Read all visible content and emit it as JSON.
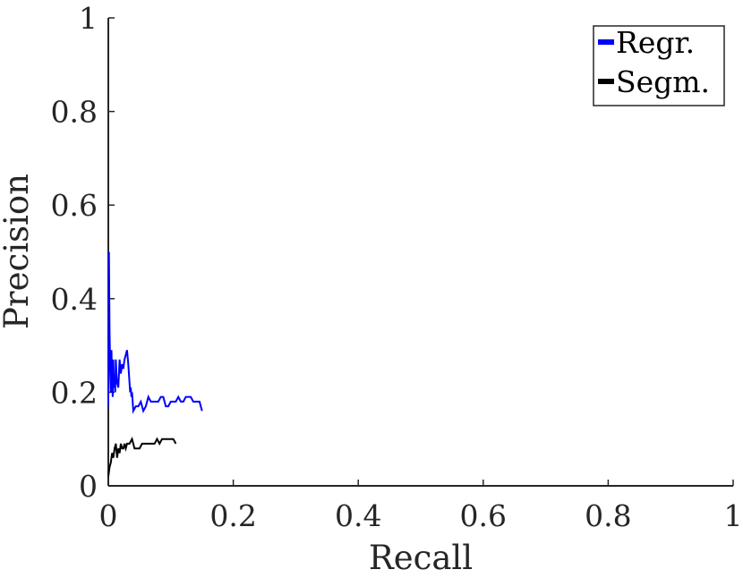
{
  "chart_data": {
    "type": "line",
    "title": "",
    "xlabel": "Recall",
    "ylabel": "Precision",
    "xlim": [
      0,
      1
    ],
    "ylim": [
      0,
      1
    ],
    "xticks": [
      0,
      0.2,
      0.4,
      0.6,
      0.8,
      1
    ],
    "yticks": [
      0,
      0.2,
      0.4,
      0.6,
      0.8,
      1
    ],
    "xtick_labels": [
      "0",
      "0.2",
      "0.4",
      "0.6",
      "0.8",
      "1"
    ],
    "ytick_labels": [
      "0",
      "0.2",
      "0.4",
      "0.6",
      "0.8",
      "1"
    ],
    "grid": false,
    "legend_position": "top-right",
    "series": [
      {
        "name": "Regr.",
        "color": "#0000ff",
        "x": [
          0.0,
          0.001,
          0.002,
          0.003,
          0.004,
          0.005,
          0.006,
          0.007,
          0.008,
          0.009,
          0.01,
          0.011,
          0.012,
          0.013,
          0.014,
          0.016,
          0.018,
          0.02,
          0.022,
          0.024,
          0.026,
          0.028,
          0.03,
          0.032,
          0.034,
          0.035,
          0.036,
          0.037,
          0.038,
          0.04,
          0.044,
          0.048,
          0.052,
          0.056,
          0.06,
          0.064,
          0.068,
          0.072,
          0.076,
          0.08,
          0.084,
          0.088,
          0.092,
          0.096,
          0.1,
          0.104,
          0.108,
          0.112,
          0.116,
          0.12,
          0.124,
          0.128,
          0.132,
          0.136,
          0.14,
          0.144,
          0.146,
          0.148,
          0.15
        ],
        "y": [
          0.17,
          0.5,
          0.33,
          0.25,
          0.2,
          0.29,
          0.23,
          0.19,
          0.27,
          0.21,
          0.23,
          0.2,
          0.27,
          0.24,
          0.22,
          0.21,
          0.27,
          0.24,
          0.26,
          0.25,
          0.27,
          0.28,
          0.29,
          0.26,
          0.22,
          0.2,
          0.21,
          0.19,
          0.2,
          0.16,
          0.17,
          0.17,
          0.18,
          0.16,
          0.17,
          0.19,
          0.18,
          0.18,
          0.18,
          0.18,
          0.19,
          0.19,
          0.17,
          0.17,
          0.18,
          0.18,
          0.18,
          0.19,
          0.18,
          0.18,
          0.19,
          0.19,
          0.19,
          0.18,
          0.18,
          0.18,
          0.18,
          0.17,
          0.16
        ]
      },
      {
        "name": "Segm.",
        "color": "#000000",
        "x": [
          0.0,
          0.002,
          0.004,
          0.006,
          0.008,
          0.01,
          0.012,
          0.014,
          0.016,
          0.018,
          0.02,
          0.022,
          0.024,
          0.026,
          0.028,
          0.03,
          0.034,
          0.038,
          0.042,
          0.046,
          0.05,
          0.054,
          0.058,
          0.062,
          0.066,
          0.07,
          0.074,
          0.078,
          0.082,
          0.086,
          0.09,
          0.094,
          0.098,
          0.1,
          0.104,
          0.108
        ],
        "y": [
          0.02,
          0.04,
          0.05,
          0.07,
          0.06,
          0.08,
          0.09,
          0.06,
          0.08,
          0.07,
          0.09,
          0.08,
          0.08,
          0.09,
          0.08,
          0.09,
          0.09,
          0.1,
          0.08,
          0.08,
          0.08,
          0.09,
          0.09,
          0.09,
          0.09,
          0.09,
          0.09,
          0.1,
          0.09,
          0.1,
          0.1,
          0.1,
          0.1,
          0.1,
          0.1,
          0.09
        ]
      }
    ]
  }
}
